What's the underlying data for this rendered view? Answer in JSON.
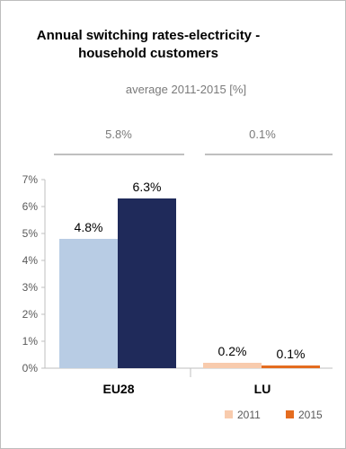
{
  "title": [
    "Annual switching rates-electricity -",
    "household customers"
  ],
  "subtitle": "average 2011-2015 [%]",
  "chart_data": {
    "type": "bar",
    "title": "Annual switching rates-electricity - household customers",
    "categories": [
      "EU28",
      "LU"
    ],
    "series": [
      {
        "name": "2011",
        "values": [
          4.8,
          0.2
        ],
        "labels": [
          "4.8%",
          "0.2%"
        ]
      },
      {
        "name": "2015",
        "values": [
          6.3,
          0.1
        ],
        "labels": [
          "6.3%",
          "0.1%"
        ]
      }
    ],
    "averages": [
      "5.8%",
      "0.1%"
    ],
    "yticks": [
      "0%",
      "1%",
      "2%",
      "3%",
      "4%",
      "5%",
      "6%",
      "7%"
    ],
    "ylim": [
      0,
      7
    ],
    "grid": false,
    "legend_position": "bottom-right",
    "colors": {
      "EU28": [
        "#b8cce4",
        "#1f2a5a"
      ],
      "LU": [
        "#f8cbad",
        "#e46c1f"
      ],
      "legend": [
        "#f8cbad",
        "#e46c1f"
      ]
    }
  }
}
